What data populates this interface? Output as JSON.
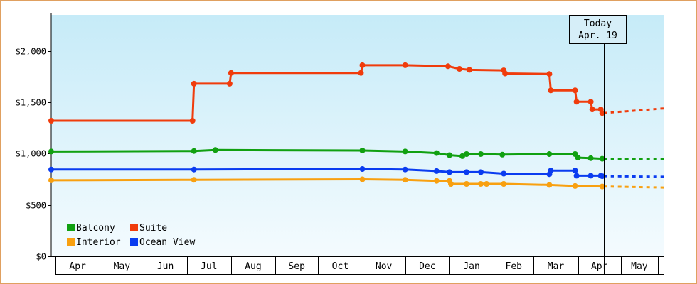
{
  "chart_data": {
    "type": "line",
    "title": "",
    "xlabel": "",
    "ylabel": "",
    "x_range": [
      "2018-03-28",
      "2019-05-31"
    ],
    "ylim": [
      0,
      2350
    ],
    "y_ticks": [
      0,
      500,
      1000,
      1500,
      2000
    ],
    "y_tick_labels": [
      "$0",
      "$500",
      "$1,000",
      "$1,500",
      "$2,000"
    ],
    "months": [
      {
        "label": "Apr",
        "start": "2018-04-01"
      },
      {
        "label": "May",
        "start": "2018-05-01"
      },
      {
        "label": "Jun",
        "start": "2018-06-01"
      },
      {
        "label": "Jul",
        "start": "2018-07-01"
      },
      {
        "label": "Aug",
        "start": "2018-08-01"
      },
      {
        "label": "Sep",
        "start": "2018-09-01"
      },
      {
        "label": "Oct",
        "start": "2018-10-01"
      },
      {
        "label": "Nov",
        "start": "2018-11-01"
      },
      {
        "label": "Dec",
        "start": "2018-12-01"
      },
      {
        "label": "Jan",
        "start": "2019-01-01"
      },
      {
        "label": "Feb",
        "start": "2019-02-01"
      },
      {
        "label": "Mar",
        "start": "2019-03-01"
      },
      {
        "label": "Apr",
        "start": "2019-04-01"
      },
      {
        "label": "May",
        "start": "2019-05-01"
      }
    ],
    "today": {
      "line1": "Today",
      "line2": "Apr. 19",
      "date": "2019-04-19"
    },
    "grid": false,
    "legend": {
      "placement": "bottom-left"
    },
    "series": [
      {
        "name": "Balcony",
        "color": "#11a011",
        "points": [
          [
            "2018-03-28",
            1020
          ],
          [
            "2018-07-06",
            1025
          ],
          [
            "2018-07-21",
            1035
          ],
          [
            "2018-11-01",
            1030
          ],
          [
            "2018-12-01",
            1020
          ],
          [
            "2018-12-23",
            1005
          ],
          [
            "2019-01-01",
            985
          ],
          [
            "2019-01-10",
            975
          ],
          [
            "2019-01-13",
            995
          ],
          [
            "2019-01-23",
            995
          ],
          [
            "2019-02-07",
            990
          ],
          [
            "2019-03-12",
            995
          ],
          [
            "2019-03-30",
            995
          ],
          [
            "2019-04-01",
            960
          ],
          [
            "2019-04-10",
            955
          ],
          [
            "2019-04-18",
            950
          ]
        ],
        "forecast": [
          [
            "2019-04-19",
            950
          ],
          [
            "2019-05-31",
            945
          ]
        ]
      },
      {
        "name": "Suite",
        "color": "#f03c0c",
        "points": [
          [
            "2018-03-28",
            1320
          ],
          [
            "2018-07-05",
            1320
          ],
          [
            "2018-07-06",
            1680
          ],
          [
            "2018-07-31",
            1680
          ],
          [
            "2018-08-01",
            1785
          ],
          [
            "2018-10-31",
            1785
          ],
          [
            "2018-11-01",
            1860
          ],
          [
            "2018-12-01",
            1860
          ],
          [
            "2018-12-31",
            1850
          ],
          [
            "2019-01-08",
            1825
          ],
          [
            "2019-01-15",
            1815
          ],
          [
            "2019-02-08",
            1810
          ],
          [
            "2019-02-09",
            1780
          ],
          [
            "2019-03-12",
            1775
          ],
          [
            "2019-03-13",
            1615
          ],
          [
            "2019-03-30",
            1615
          ],
          [
            "2019-03-31",
            1505
          ],
          [
            "2019-04-10",
            1505
          ],
          [
            "2019-04-11",
            1430
          ],
          [
            "2019-04-17",
            1430
          ],
          [
            "2019-04-18",
            1395
          ]
        ],
        "forecast": [
          [
            "2019-04-19",
            1395
          ],
          [
            "2019-05-31",
            1440
          ]
        ]
      },
      {
        "name": "Interior",
        "color": "#f8a010",
        "points": [
          [
            "2018-03-28",
            740
          ],
          [
            "2018-07-06",
            745
          ],
          [
            "2018-11-01",
            750
          ],
          [
            "2018-12-01",
            745
          ],
          [
            "2018-12-23",
            735
          ],
          [
            "2019-01-01",
            735
          ],
          [
            "2019-01-02",
            705
          ],
          [
            "2019-01-13",
            705
          ],
          [
            "2019-01-23",
            705
          ],
          [
            "2019-01-27",
            705
          ],
          [
            "2019-02-08",
            705
          ],
          [
            "2019-03-12",
            695
          ],
          [
            "2019-03-30",
            685
          ],
          [
            "2019-04-18",
            680
          ]
        ],
        "forecast": [
          [
            "2019-04-19",
            680
          ],
          [
            "2019-05-31",
            670
          ]
        ]
      },
      {
        "name": "Ocean View",
        "color": "#0a3cf0",
        "points": [
          [
            "2018-03-28",
            845
          ],
          [
            "2018-07-06",
            845
          ],
          [
            "2018-11-01",
            850
          ],
          [
            "2018-12-01",
            845
          ],
          [
            "2018-12-23",
            830
          ],
          [
            "2019-01-01",
            820
          ],
          [
            "2019-01-13",
            820
          ],
          [
            "2019-01-23",
            820
          ],
          [
            "2019-02-08",
            805
          ],
          [
            "2019-03-12",
            800
          ],
          [
            "2019-03-13",
            835
          ],
          [
            "2019-03-30",
            835
          ],
          [
            "2019-03-31",
            785
          ],
          [
            "2019-04-10",
            785
          ],
          [
            "2019-04-17",
            785
          ],
          [
            "2019-04-18",
            780
          ]
        ],
        "forecast": [
          [
            "2019-04-19",
            780
          ],
          [
            "2019-05-31",
            775
          ]
        ]
      }
    ]
  }
}
